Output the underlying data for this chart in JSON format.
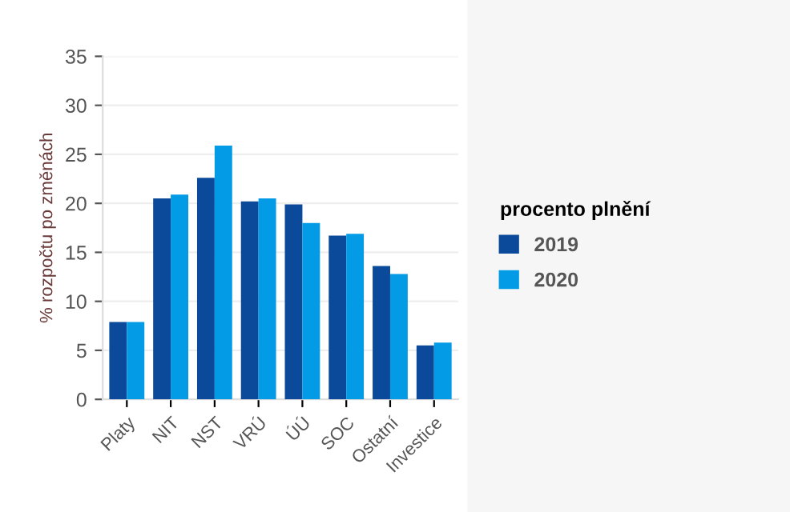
{
  "chart_data": {
    "type": "bar",
    "legend_title": "procento plnění",
    "ylabel": "% rozpočtu po změnách",
    "categories": [
      "Platy",
      "NIT",
      "NST",
      "VRÚ",
      "ÚÚ",
      "SOC",
      "Ostatní",
      "Investice"
    ],
    "series": [
      {
        "name": "2019",
        "color": "#0b4a9a",
        "values": [
          7.9,
          20.5,
          22.6,
          20.2,
          19.9,
          16.7,
          13.6,
          5.5
        ]
      },
      {
        "name": "2020",
        "color": "#039be5",
        "values": [
          7.9,
          20.9,
          25.9,
          20.5,
          18.0,
          16.9,
          12.8,
          5.8
        ]
      }
    ],
    "ylim": [
      0,
      35
    ],
    "yticks": [
      0,
      5,
      10,
      15,
      20,
      25,
      30,
      35
    ],
    "grid": "y",
    "legend": "right"
  }
}
